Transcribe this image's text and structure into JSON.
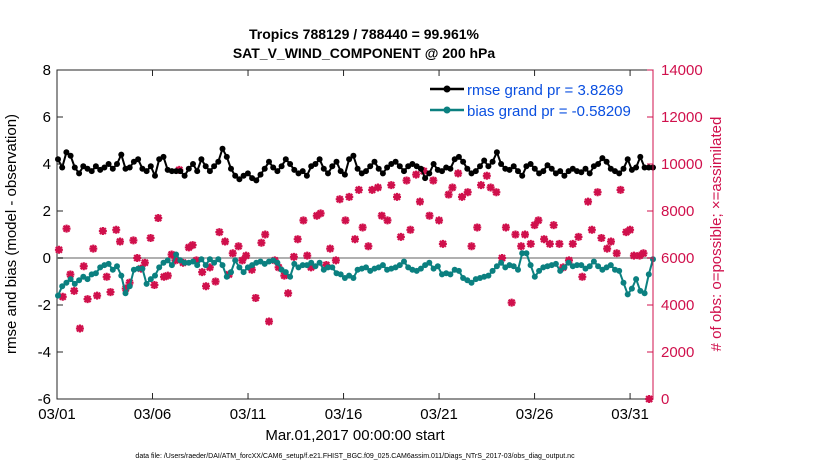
{
  "chart_data": {
    "type": "line",
    "title": "Tropics 788129 / 788440 = 99.961%",
    "subtitle": "SAT_V_WIND_COMPONENT @ 200 hPa",
    "xlabel": "Mar.01,2017 00:00:00 start",
    "ylabel": "rmse and bias (model - observation)",
    "ylabel_right": "# of obs: o=possible; ×=assimilated",
    "footnote": "data file: /Users/raeder/DAI/ATM_forcXX/CAM6_setup/f.e21.FHIST_BGC.f09_025.CAM6assim.011/Diags_NTrS_2017-03/obs_diag_output.nc",
    "x_tick_labels": [
      "03/01",
      "03/06",
      "03/11",
      "03/16",
      "03/21",
      "03/26",
      "03/31"
    ],
    "x_tick_days": [
      0,
      5,
      10,
      15,
      20,
      25,
      30
    ],
    "xlim": [
      0,
      31.2
    ],
    "ylim": [
      -6,
      8
    ],
    "y_ticks": [
      -6,
      -4,
      -2,
      0,
      2,
      4,
      6,
      8
    ],
    "ylim_right": [
      0,
      14000
    ],
    "y_ticks_right": [
      0,
      2000,
      4000,
      6000,
      8000,
      10000,
      12000,
      14000
    ],
    "legend_position": "top-right",
    "colors": {
      "rmse": "#000000",
      "bias": "#0b8080",
      "obs": "#d0104c",
      "legend_text": "#0a4fe0",
      "zero_line": "#b0b0b0"
    },
    "series": [
      {
        "name": "rmse grand pr = 3.8269",
        "values": [
          4.2,
          3.85,
          4.5,
          4.35,
          3.85,
          3.6,
          3.9,
          3.8,
          3.7,
          3.9,
          3.75,
          3.85,
          4.0,
          3.8,
          4.0,
          4.4,
          3.8,
          3.85,
          4.1,
          4.2,
          3.8,
          3.7,
          3.9,
          3.5,
          4.2,
          4.3,
          3.75,
          3.7,
          3.7,
          3.7,
          3.5,
          3.8,
          4.0,
          3.7,
          4.2,
          3.9,
          3.7,
          3.9,
          4.1,
          4.65,
          4.3,
          3.8,
          3.5,
          3.35,
          3.5,
          3.6,
          3.4,
          3.3,
          3.55,
          3.8,
          4.1,
          3.85,
          3.7,
          3.9,
          4.2,
          4.0,
          3.75,
          3.6,
          3.7,
          3.5,
          3.9,
          4.0,
          4.2,
          3.8,
          3.6,
          3.9,
          4.1,
          3.7,
          3.55,
          4.2,
          4.35,
          3.8,
          3.6,
          3.7,
          3.9,
          4.1,
          3.8,
          3.6,
          3.85,
          4.0,
          4.1,
          3.9,
          3.7,
          3.9,
          4.0,
          3.9,
          3.8,
          3.4,
          3.6,
          4.0,
          3.75,
          3.7,
          3.85,
          3.8,
          4.2,
          4.3,
          4.1,
          3.8,
          3.6,
          3.7,
          3.9,
          4.15,
          3.9,
          4.1,
          4.5,
          4.0,
          3.8,
          3.75,
          3.9,
          3.7,
          3.5,
          3.9,
          4.0,
          3.8,
          3.6,
          3.7,
          3.95,
          3.8,
          3.6,
          3.7,
          3.5,
          3.7,
          3.8,
          3.7,
          3.65,
          3.8,
          3.6,
          3.9,
          4.0,
          4.25,
          4.1,
          3.8,
          3.7,
          3.6,
          3.8,
          4.2,
          3.75,
          3.85,
          4.3,
          3.85,
          3.85,
          3.85
        ]
      },
      {
        "name": "bias grand pr = -0.58209",
        "values": [
          -1.6,
          -1.2,
          -1.05,
          -0.9,
          -1.1,
          -0.95,
          -0.8,
          -0.9,
          -0.7,
          -0.65,
          -0.4,
          -0.3,
          -0.25,
          -0.5,
          -0.35,
          -0.75,
          -1.5,
          -1.2,
          -0.5,
          -0.45,
          -0.45,
          -1.1,
          -0.9,
          -0.75,
          -0.4,
          -0.2,
          -0.1,
          -0.3,
          0.15,
          -0.1,
          -0.2,
          -0.2,
          -0.15,
          -0.3,
          -0.05,
          -0.3,
          -0.05,
          -0.2,
          -0.05,
          -0.3,
          -0.8,
          -0.6,
          -0.1,
          -0.4,
          -0.6,
          -0.4,
          -0.3,
          -0.2,
          -0.15,
          -0.25,
          -0.15,
          -0.1,
          -0.2,
          -0.5,
          -0.6,
          -0.8,
          -0.25,
          -0.4,
          -0.3,
          -0.3,
          -0.2,
          -0.35,
          -0.2,
          -0.5,
          -0.4,
          -0.4,
          -0.65,
          -0.7,
          -0.85,
          -0.75,
          -0.85,
          -0.5,
          -0.45,
          -0.4,
          -0.55,
          -0.45,
          -0.4,
          -0.3,
          -0.5,
          -0.45,
          -0.4,
          -0.3,
          -0.15,
          -0.4,
          -0.5,
          -0.55,
          -0.45,
          -0.3,
          -0.2,
          -0.45,
          -0.35,
          -0.7,
          -0.65,
          -0.7,
          -0.5,
          -0.55,
          -0.85,
          -0.95,
          -1.05,
          -0.9,
          -0.85,
          -0.8,
          -0.75,
          -0.55,
          -0.35,
          -0.2,
          -0.4,
          -0.3,
          -0.35,
          -0.5,
          0.2,
          0.2,
          -0.3,
          -0.8,
          -0.55,
          -0.4,
          -0.35,
          -0.3,
          -0.25,
          -0.55,
          -0.4,
          -0.2,
          -0.35,
          -0.3,
          -0.3,
          -0.45,
          -0.35,
          -0.15,
          -0.35,
          -0.5,
          -0.4,
          -0.3,
          -0.5,
          -0.55,
          -1.05,
          -1.55,
          -1.3,
          -0.9,
          -1.4,
          -1.5,
          -0.7,
          -0.05
        ]
      }
    ],
    "obs_counts_approx_day": [
      0.1,
      0.3,
      0.5,
      0.7,
      0.9,
      1.2,
      1.4,
      1.6,
      1.9,
      2.1,
      2.4,
      2.6,
      2.8,
      3.1,
      3.3,
      3.6,
      3.8,
      4.0,
      4.2,
      4.4,
      4.6,
      4.9,
      5.1,
      5.3,
      5.6,
      5.8,
      6.0,
      6.2,
      6.4,
      6.6,
      6.9,
      7.1,
      7.3,
      7.6,
      7.8,
      8.0,
      8.3,
      8.5,
      8.8,
      9.0,
      9.2,
      9.5,
      9.7,
      9.9,
      10.2,
      10.4,
      10.7,
      10.9,
      11.1,
      11.4,
      11.6,
      11.9,
      12.1,
      12.4,
      12.6,
      12.9,
      13.1,
      13.3,
      13.6,
      13.8,
      14.1,
      14.3,
      14.6,
      14.8,
      15.1,
      15.3,
      15.6,
      15.8,
      16.0,
      16.3,
      16.5,
      16.8,
      17.0,
      17.3,
      17.5,
      17.8,
      18.0,
      18.3,
      18.5,
      18.8,
      19.0,
      19.2,
      19.5,
      19.7,
      20.0,
      20.2,
      20.5,
      20.7,
      21.0,
      21.2,
      21.5,
      21.7,
      22.0,
      22.2,
      22.5,
      22.7,
      23.0,
      23.3,
      23.5,
      23.8,
      24.0,
      24.3,
      24.5,
      24.8,
      25.0,
      25.2,
      25.5,
      25.8,
      26.0,
      26.3,
      26.5,
      26.8,
      27.0,
      27.3,
      27.5,
      27.8,
      28.0,
      28.3,
      28.5,
      28.8,
      29.0,
      29.3,
      29.5,
      29.8,
      30.0,
      30.2,
      30.5,
      30.7,
      31.0
    ],
    "obs_counts": [
      6350,
      4350,
      7250,
      5300,
      4600,
      3000,
      5650,
      4250,
      6400,
      4400,
      7150,
      5200,
      4550,
      7200,
      6700,
      4700,
      4950,
      6750,
      6000,
      5550,
      5800,
      6850,
      4850,
      7700,
      5200,
      5250,
      6150,
      5900,
      9750,
      5800,
      6450,
      6550,
      5900,
      5400,
      4800,
      5600,
      5000,
      7100,
      6700,
      5300,
      6200,
      6500,
      5900,
      6100,
      5500,
      4300,
      6650,
      7000,
      3300,
      5900,
      5600,
      5250,
      4500,
      6050,
      6800,
      7600,
      6100,
      5600,
      7800,
      7900,
      5700,
      6400,
      5900,
      8500,
      7600,
      8600,
      6800,
      8900,
      7300,
      6500,
      8900,
      9000,
      7800,
      7600,
      9100,
      8600,
      6900,
      9300,
      7200,
      9550,
      8400,
      9700,
      7800,
      9300,
      7600,
      6600,
      8700,
      9000,
      9600,
      8600,
      8800,
      6500,
      7300,
      9100,
      9500,
      9000,
      8800,
      6000,
      7300,
      4100,
      7000,
      6500,
      7000,
      6600,
      7400,
      7600,
      6800,
      6600,
      7400,
      6600,
      5600,
      5900,
      6600,
      6900,
      5200,
      8400,
      7200,
      8800,
      6850,
      6400,
      6700,
      6200,
      8900,
      7100,
      7200,
      6100,
      6100,
      6200,
      0
    ]
  }
}
